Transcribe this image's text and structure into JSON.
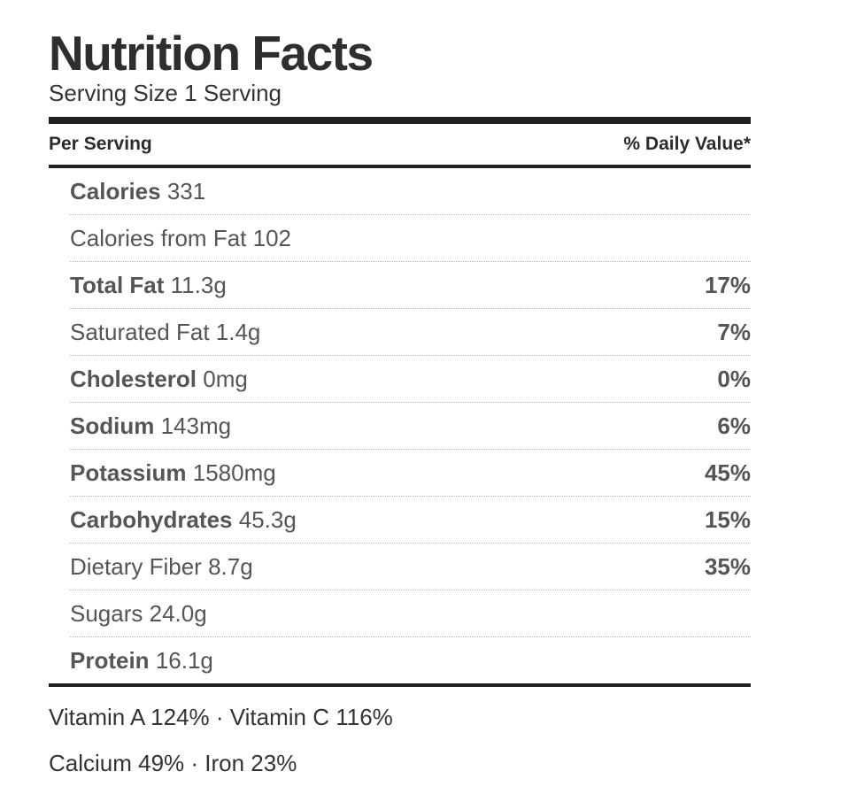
{
  "title": "Nutrition Facts",
  "serving_size": "Serving Size 1 Serving",
  "header": {
    "per_serving": "Per Serving",
    "daily_value": "% Daily Value*"
  },
  "nutrients": [
    {
      "name": "Calories",
      "value": "331",
      "dv": "",
      "bold": true
    },
    {
      "name": "Calories from Fat",
      "value": "102",
      "dv": "",
      "bold": false
    },
    {
      "name": "Total Fat",
      "value": "11.3g",
      "dv": "17%",
      "bold": true
    },
    {
      "name": "Saturated Fat",
      "value": "1.4g",
      "dv": "7%",
      "bold": false
    },
    {
      "name": "Cholesterol",
      "value": "0mg",
      "dv": "0%",
      "bold": true
    },
    {
      "name": "Sodium",
      "value": "143mg",
      "dv": "6%",
      "bold": true
    },
    {
      "name": "Potassium",
      "value": "1580mg",
      "dv": "45%",
      "bold": true
    },
    {
      "name": "Carbohydrates",
      "value": "45.3g",
      "dv": "15%",
      "bold": true
    },
    {
      "name": "Dietary Fiber",
      "value": "8.7g",
      "dv": "35%",
      "bold": false
    },
    {
      "name": "Sugars",
      "value": "24.0g",
      "dv": "",
      "bold": false
    },
    {
      "name": "Protein",
      "value": "16.1g",
      "dv": "",
      "bold": true
    }
  ],
  "vitamins": {
    "line1": "Vitamin A 124% · Vitamin C 116%",
    "line2": "Calcium 49% · Iron 23%"
  }
}
